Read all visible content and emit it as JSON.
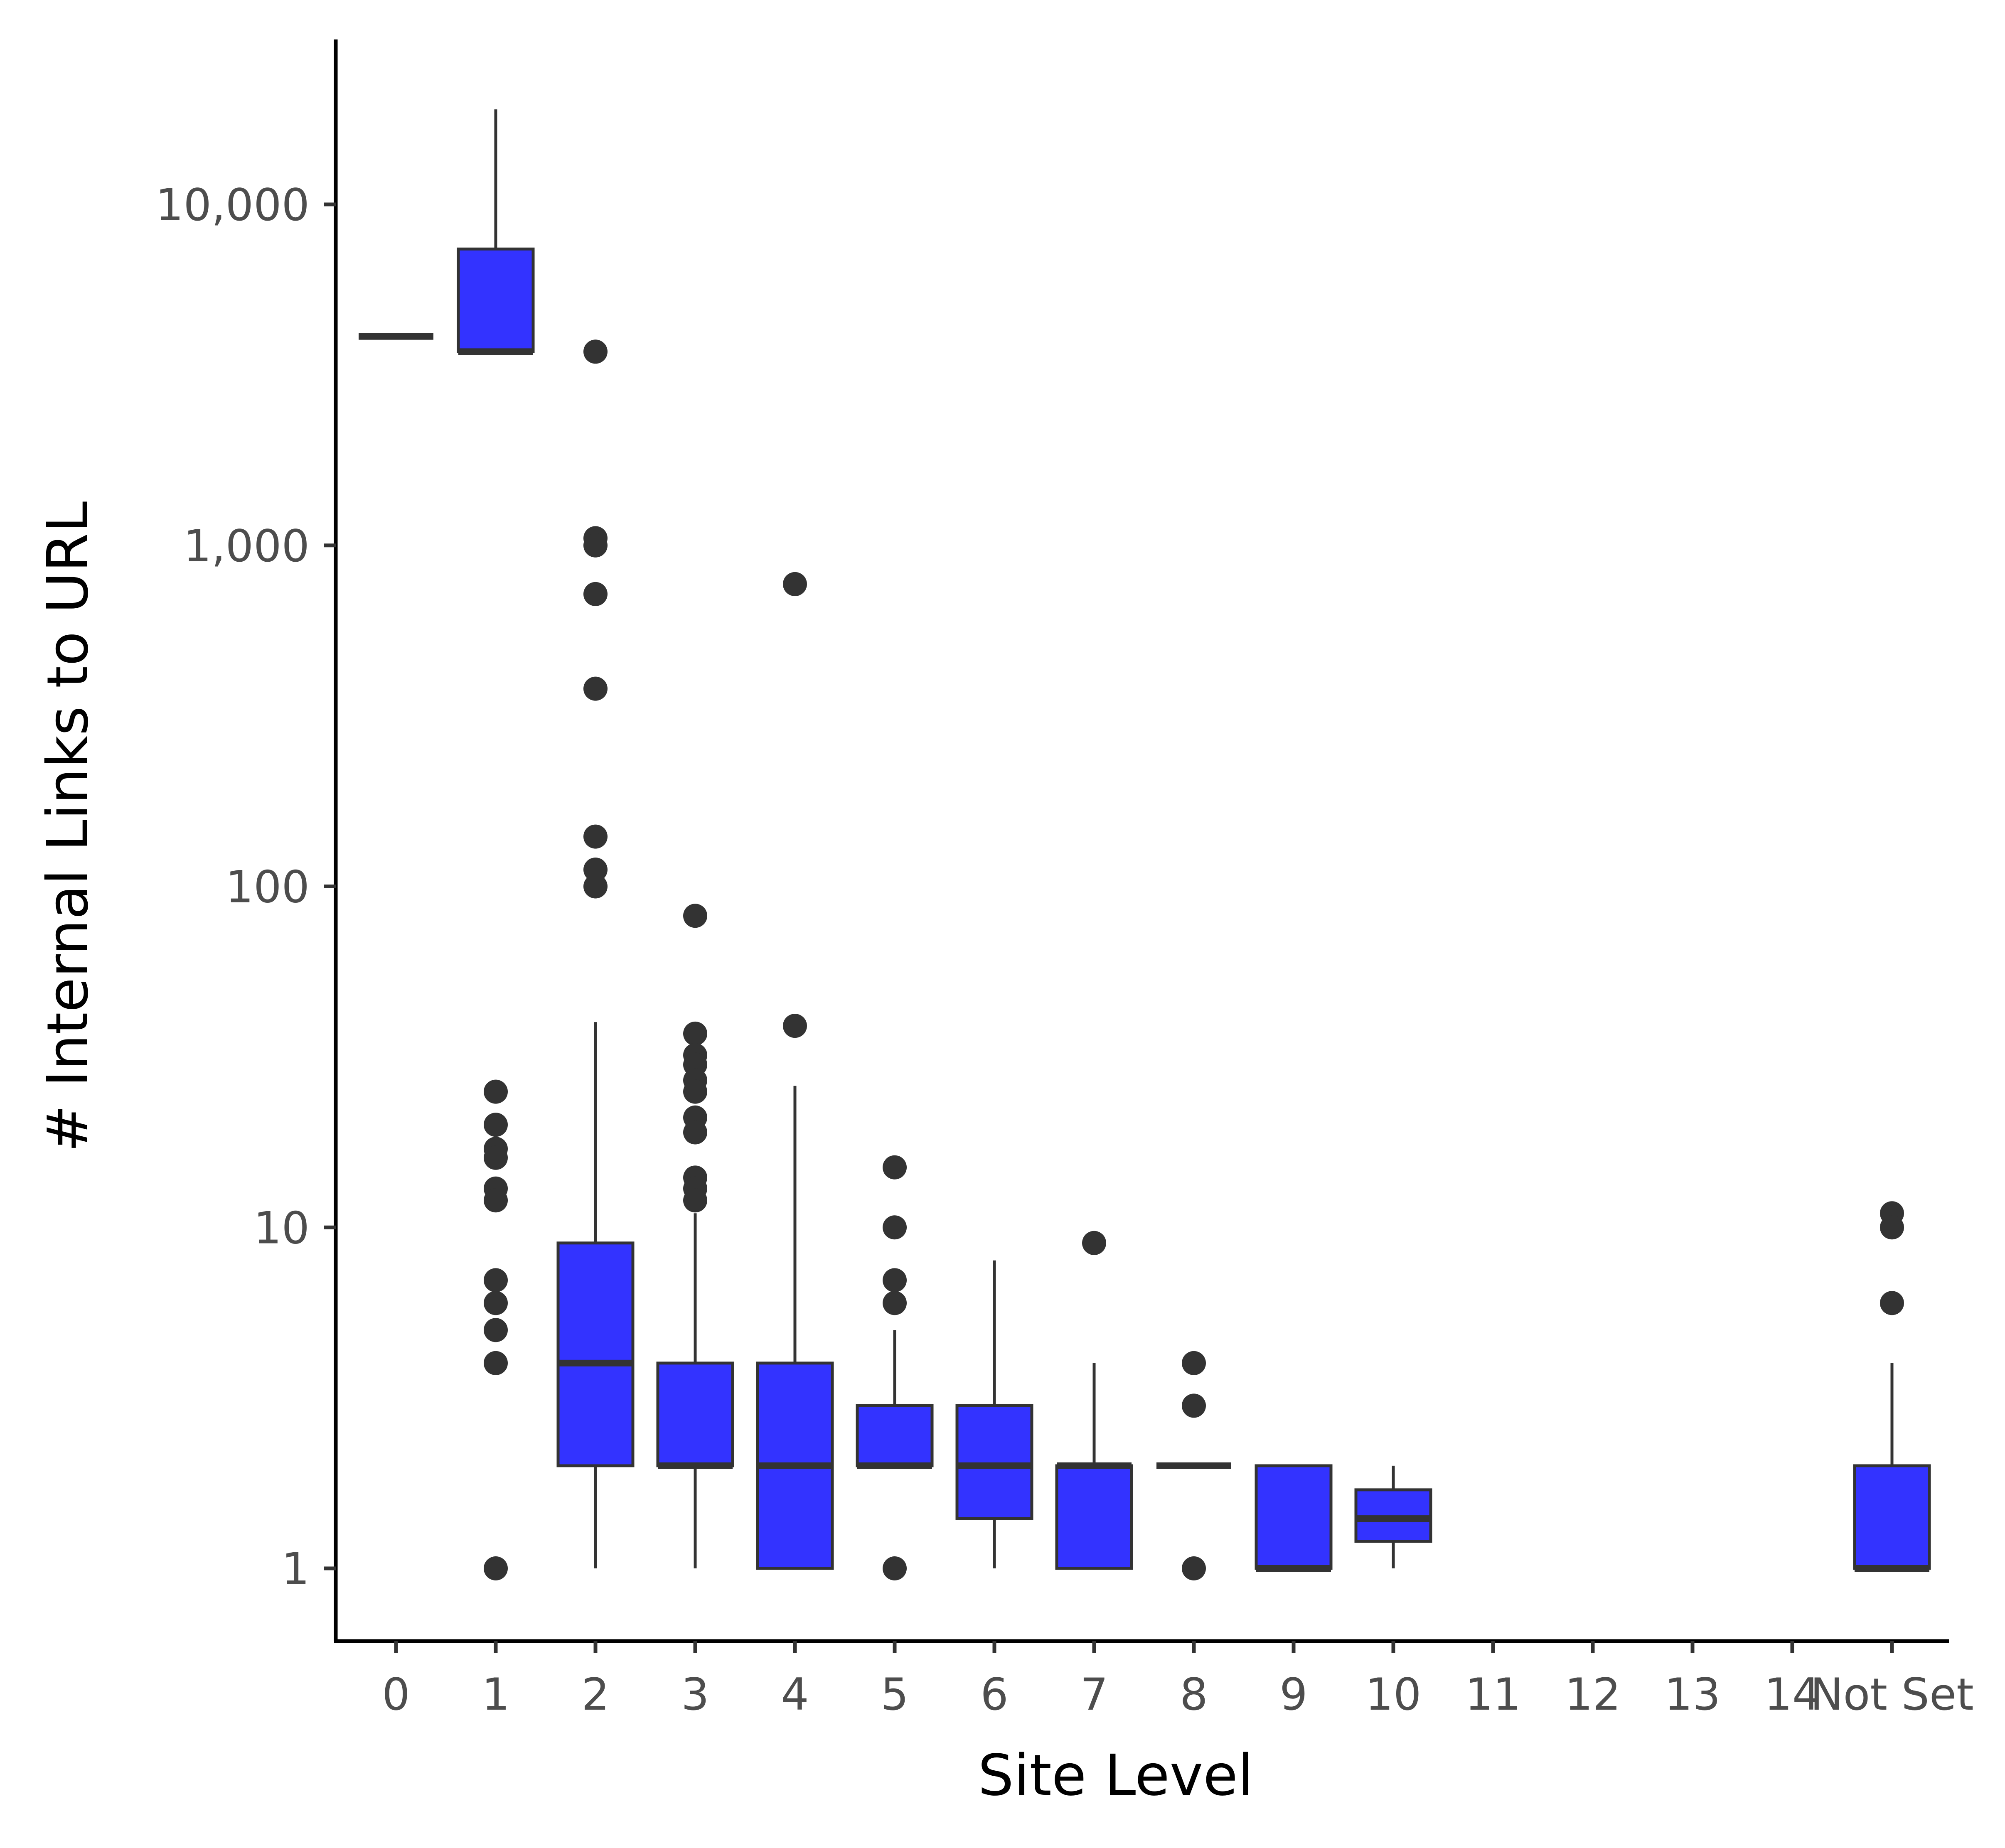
{
  "chart_data": {
    "type": "box",
    "xlabel": "Site Level",
    "ylabel": "# Internal Links to URL",
    "y_scale": "log10",
    "ylim": [
      0.62,
      27000
    ],
    "y_ticks": [
      {
        "value": 1,
        "label": "1"
      },
      {
        "value": 10,
        "label": "10"
      },
      {
        "value": 100,
        "label": "100"
      },
      {
        "value": 1000,
        "label": "1,000"
      },
      {
        "value": 10000,
        "label": "10,000"
      }
    ],
    "categories": [
      "0",
      "1",
      "2",
      "3",
      "4",
      "5",
      "6",
      "7",
      "8",
      "9",
      "10",
      "11",
      "12",
      "13",
      "14",
      "Not Set"
    ],
    "fill_color": "#3333ff",
    "line_color": "#333333",
    "boxes": [
      {
        "category": "0",
        "lower_whisker": 4100,
        "q1": 4100,
        "median": 4100,
        "q3": 4100,
        "upper_whisker": 4100,
        "outliers": []
      },
      {
        "category": "1",
        "lower_whisker": 3700,
        "q1": 3700,
        "median": 3700,
        "q3": 7400,
        "upper_whisker": 19000,
        "outliers": [
          25,
          20,
          17,
          16,
          13,
          12,
          7,
          6,
          5,
          4,
          1
        ]
      },
      {
        "category": "2",
        "lower_whisker": 1,
        "q1": 2,
        "median": 4,
        "q3": 9,
        "upper_whisker": 40,
        "outliers": [
          3700,
          1050,
          1000,
          720,
          380,
          140,
          112,
          100
        ]
      },
      {
        "category": "3",
        "lower_whisker": 1,
        "q1": 2,
        "median": 2,
        "q3": 4,
        "upper_whisker": 11,
        "outliers": [
          82,
          37,
          32,
          30,
          27,
          25,
          21,
          19,
          14,
          13,
          12
        ]
      },
      {
        "category": "4",
        "lower_whisker": 1,
        "q1": 1,
        "median": 2,
        "q3": 4,
        "upper_whisker": 26,
        "outliers": [
          770,
          39
        ]
      },
      {
        "category": "5",
        "lower_whisker": 2,
        "q1": 2,
        "median": 2,
        "q3": 3,
        "upper_whisker": 5,
        "outliers": [
          15,
          10,
          7,
          6,
          1
        ]
      },
      {
        "category": "6",
        "lower_whisker": 1,
        "q1": 1.4,
        "median": 2,
        "q3": 3,
        "upper_whisker": 8,
        "outliers": []
      },
      {
        "category": "7",
        "lower_whisker": 1,
        "q1": 1,
        "median": 2,
        "q3": 2,
        "upper_whisker": 4,
        "outliers": [
          9
        ]
      },
      {
        "category": "8",
        "lower_whisker": 2,
        "q1": 2,
        "median": 2,
        "q3": 2,
        "upper_whisker": 2,
        "outliers": [
          4,
          3,
          1
        ]
      },
      {
        "category": "9",
        "lower_whisker": 1,
        "q1": 1,
        "median": 1,
        "q3": 2,
        "upper_whisker": 2,
        "outliers": []
      },
      {
        "category": "10",
        "lower_whisker": 1,
        "q1": 1.2,
        "median": 1.4,
        "q3": 1.7,
        "upper_whisker": 2,
        "outliers": []
      },
      {
        "category": "Not Set",
        "lower_whisker": 1,
        "q1": 1,
        "median": 1,
        "q3": 2,
        "upper_whisker": 4,
        "outliers": [
          11,
          10,
          6
        ]
      }
    ],
    "grid": false,
    "legend": "none"
  }
}
